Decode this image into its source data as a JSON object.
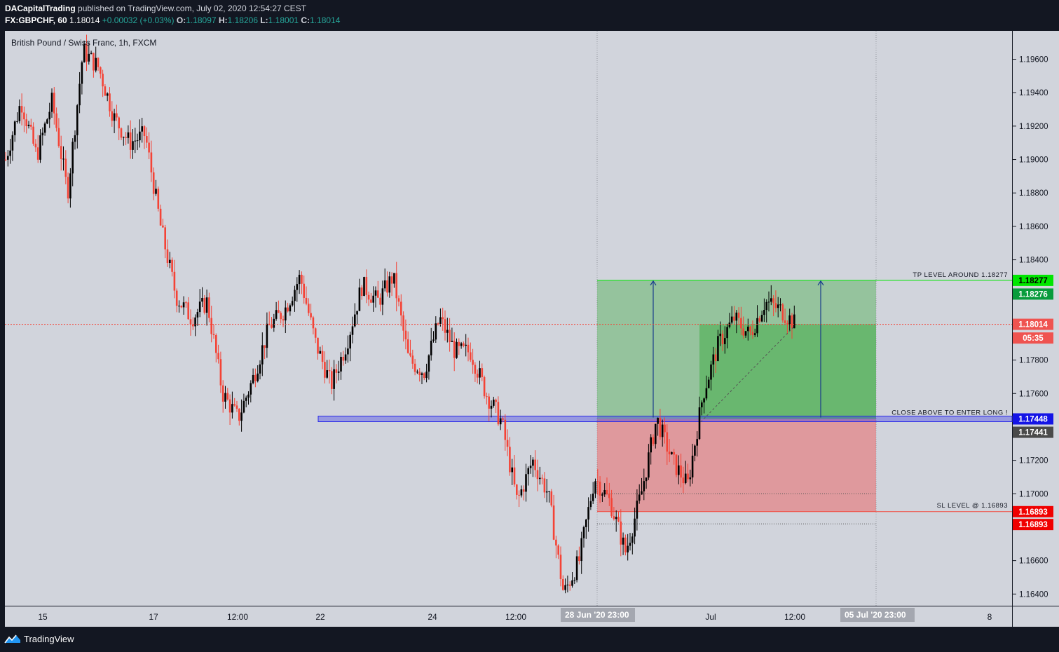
{
  "header": {
    "author": "DACapitalTrading",
    "published": "published on TradingView.com, July 02, 2020 12:54:27 CEST",
    "symbol": "FX:GBPCHF, 60",
    "last": "1.18014",
    "change": "+0.00032 (+0.03%)",
    "o_label": "O:",
    "o_value": "1.18097",
    "h_label": "H:",
    "h_value": "1.18206",
    "l_label": "L:",
    "l_value": "1.18001",
    "c_label": "C:",
    "c_value": "1.18014"
  },
  "footer": {
    "brand": "TradingView"
  },
  "colors": {
    "background": "#d1d4dc",
    "frame": "#131722",
    "bull": "#000000",
    "bear": "#f44336",
    "profit_zone": "#4caf50",
    "loss_zone": "#ef5350",
    "entry_band": "#2a2ae8",
    "tp_line": "#00e600",
    "sl_line": "#f44336",
    "arrow": "#1a3c8c"
  },
  "chart_data": {
    "type": "candlestick",
    "title": "British Pound / Swiss Franc, 1h, FXCM",
    "symbol": "GBPCHF",
    "timeframe": "1h",
    "ylim": [
      1.1633,
      1.1977
    ],
    "y_ticks": [
      "1.19600",
      "1.19400",
      "1.19200",
      "1.19000",
      "1.18800",
      "1.18600",
      "1.18400",
      "1.17800",
      "1.17600",
      "1.17200",
      "1.17000",
      "1.16600",
      "1.16400"
    ],
    "x_ticks": [
      "15",
      "17",
      "12:00",
      "22",
      "24",
      "12:00",
      "1 Jul",
      "12:00",
      "8"
    ],
    "x_tick_labels": [
      "15",
      "17",
      "12:00",
      "22",
      "24",
      "12:00",
      "Jul",
      "12:00",
      "8"
    ],
    "price_path": [
      [
        "15",
        1.19
      ],
      [
        "15",
        1.1935
      ],
      [
        "15",
        1.1902
      ],
      [
        "15",
        1.1935
      ],
      [
        "15",
        1.188
      ],
      [
        "17",
        1.1965
      ],
      [
        "17",
        1.1955
      ],
      [
        "17",
        1.1925
      ],
      [
        "17",
        1.191
      ],
      [
        "12:00",
        1.1915
      ],
      [
        "12:00",
        1.186
      ],
      [
        "12:00",
        1.1818
      ],
      [
        "12:00",
        1.1805
      ],
      [
        "12:00",
        1.1815
      ],
      [
        "22",
        1.176
      ],
      [
        "22",
        1.1745
      ],
      [
        "22",
        1.177
      ],
      [
        "22",
        1.18
      ],
      [
        "22",
        1.181
      ],
      [
        "24",
        1.183
      ],
      [
        "24",
        1.179
      ],
      [
        "24",
        1.1765
      ],
      [
        "24",
        1.179
      ],
      [
        "24",
        1.1825
      ],
      [
        "24",
        1.1815
      ],
      [
        "24",
        1.183
      ],
      [
        "12:00",
        1.178
      ],
      [
        "12:00",
        1.1773
      ],
      [
        "12:00",
        1.1805
      ],
      [
        "12:00",
        1.1785
      ],
      [
        "12:00",
        1.1785
      ],
      [
        "12:00",
        1.176
      ],
      [
        "28 Jun '20",
        1.1743
      ],
      [
        "28 Jun '20",
        1.1695
      ],
      [
        "28 Jun '20",
        1.172
      ],
      [
        "28 Jun '20",
        1.17
      ],
      [
        "28 Jun '20",
        1.164
      ],
      [
        "28 Jun '20",
        1.166
      ],
      [
        "28 Jun '20",
        1.171
      ],
      [
        "1 Jul",
        1.1695
      ],
      [
        "1 Jul",
        1.1665
      ],
      [
        "1 Jul",
        1.17
      ],
      [
        "1 Jul",
        1.1745
      ],
      [
        "1 Jul",
        1.172
      ],
      [
        "1 Jul",
        1.1705
      ],
      [
        "1 Jul",
        1.176
      ],
      [
        "1 Jul",
        1.179
      ],
      [
        "1 Jul",
        1.1805
      ],
      [
        "12:00",
        1.1795
      ],
      [
        "12:00",
        1.1815
      ],
      [
        "12:00",
        1.181
      ],
      [
        "12:00",
        1.1801
      ]
    ],
    "position": {
      "type": "long",
      "entry": 1.17448,
      "take_profit": 1.18277,
      "stop_loss": 1.16893,
      "start_label": "28 Jun '20",
      "end_label": "05 Jul '20"
    },
    "annotations": [
      {
        "text": "TP LEVEL AROUND 1.18277",
        "price": 1.18277
      },
      {
        "text": "CLOSE ABOVE TO ENTER LONG !",
        "price": 1.17448
      },
      {
        "text": "SL LEVEL @ 1.16893",
        "price": 1.16893
      }
    ],
    "price_labels": [
      {
        "text": "1.18277",
        "price": 1.18277,
        "bg": "#00e600",
        "fg": "#000000"
      },
      {
        "text": "1.18276",
        "price": 1.18195,
        "bg": "#089c3c",
        "fg": "#ffffff"
      },
      {
        "text": "1.18014",
        "price": 1.18014,
        "bg": "#ef5350",
        "fg": "#ffffff"
      },
      {
        "text": "05:35",
        "price": 1.17932,
        "bg": "#ef5350",
        "fg": "#ffffff"
      },
      {
        "text": "1.17448",
        "price": 1.17448,
        "bg": "#1414e6",
        "fg": "#ffffff"
      },
      {
        "text": "1.17441",
        "price": 1.17368,
        "bg": "#4a4a4a",
        "fg": "#ffffff"
      },
      {
        "text": "1.16893",
        "price": 1.16893,
        "bg": "#f00000",
        "fg": "#ffffff"
      },
      {
        "text": "1.16893",
        "price": 1.16816,
        "bg": "#f00000",
        "fg": "#ffffff"
      }
    ],
    "x_range_labels": [
      {
        "text": "28 Jun '20",
        "sub": "23:00"
      },
      {
        "text": "05 Jul '20",
        "sub": "23:00"
      }
    ],
    "current_price": 1.18014
  }
}
